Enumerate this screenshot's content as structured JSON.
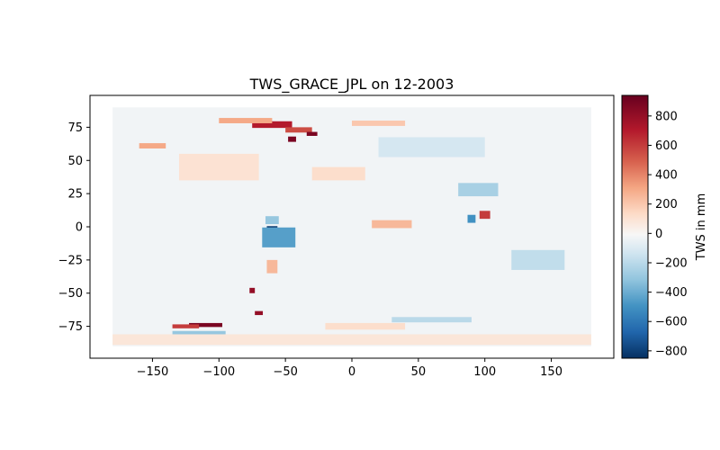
{
  "chart_data": {
    "type": "heatmap",
    "title": "TWS_GRACE_JPL on 12-2003",
    "xlabel": "",
    "ylabel": "",
    "xlim": [
      -197,
      197
    ],
    "ylim": [
      -99,
      99
    ],
    "x_ticks": [
      -150,
      -100,
      -50,
      0,
      50,
      100,
      150
    ],
    "y_ticks": [
      -75,
      -50,
      -25,
      0,
      25,
      50,
      75
    ],
    "grid": false,
    "colormap": "RdBu_r",
    "colorbar": {
      "label": "TWS in mm",
      "vmin": -850,
      "vmax": 940,
      "ticks": [
        -800,
        -600,
        -400,
        -200,
        0,
        200,
        400,
        600,
        800
      ]
    },
    "data_extent": {
      "lon": [
        -180,
        180
      ],
      "lat": [
        -90,
        90
      ]
    },
    "background_value": -30,
    "anomalies": [
      {
        "lon": -60,
        "lat": 77,
        "value": 700,
        "w": 30,
        "h": 5
      },
      {
        "lon": -40,
        "lat": 73,
        "value": 550,
        "w": 20,
        "h": 4
      },
      {
        "lon": -30,
        "lat": 70,
        "value": 880,
        "w": 8,
        "h": 3
      },
      {
        "lon": -45,
        "lat": 66,
        "value": 880,
        "w": 6,
        "h": 4
      },
      {
        "lon": -80,
        "lat": 80,
        "value": 300,
        "w": 40,
        "h": 4
      },
      {
        "lon": -150,
        "lat": 61,
        "value": 300,
        "w": 20,
        "h": 4
      },
      {
        "lon": -60,
        "lat": -2,
        "value": -820,
        "w": 8,
        "h": 5
      },
      {
        "lon": -55,
        "lat": -8,
        "value": -450,
        "w": 25,
        "h": 15
      },
      {
        "lon": -60,
        "lat": 5,
        "value": -300,
        "w": 10,
        "h": 6
      },
      {
        "lon": -60,
        "lat": -30,
        "value": 250,
        "w": 8,
        "h": 10
      },
      {
        "lon": 90,
        "lat": 6,
        "value": -500,
        "w": 6,
        "h": 6
      },
      {
        "lon": 100,
        "lat": 9,
        "value": 600,
        "w": 8,
        "h": 6
      },
      {
        "lon": 95,
        "lat": 28,
        "value": -250,
        "w": 30,
        "h": 10
      },
      {
        "lon": 30,
        "lat": 2,
        "value": 250,
        "w": 30,
        "h": 6
      },
      {
        "lon": -110,
        "lat": -74,
        "value": 880,
        "w": 25,
        "h": 3
      },
      {
        "lon": -125,
        "lat": -75,
        "value": 600,
        "w": 20,
        "h": 3
      },
      {
        "lon": -115,
        "lat": -80,
        "value": -300,
        "w": 40,
        "h": 3
      },
      {
        "lon": -70,
        "lat": -65,
        "value": 800,
        "w": 6,
        "h": 3
      },
      {
        "lon": -75,
        "lat": -48,
        "value": 800,
        "w": 4,
        "h": 4
      },
      {
        "lon": 60,
        "lat": -70,
        "value": -200,
        "w": 60,
        "h": 4
      },
      {
        "lon": 10,
        "lat": -75,
        "value": 120,
        "w": 60,
        "h": 5
      },
      {
        "lon": 0,
        "lat": -85,
        "value": 80,
        "w": 360,
        "h": 8
      },
      {
        "lon": 20,
        "lat": 78,
        "value": 200,
        "w": 40,
        "h": 4
      },
      {
        "lon": 60,
        "lat": 60,
        "value": -120,
        "w": 80,
        "h": 15
      },
      {
        "lon": -10,
        "lat": 40,
        "value": 120,
        "w": 40,
        "h": 10
      },
      {
        "lon": 140,
        "lat": -25,
        "value": -180,
        "w": 40,
        "h": 15
      },
      {
        "lon": -100,
        "lat": 45,
        "value": 100,
        "w": 60,
        "h": 20
      }
    ]
  }
}
